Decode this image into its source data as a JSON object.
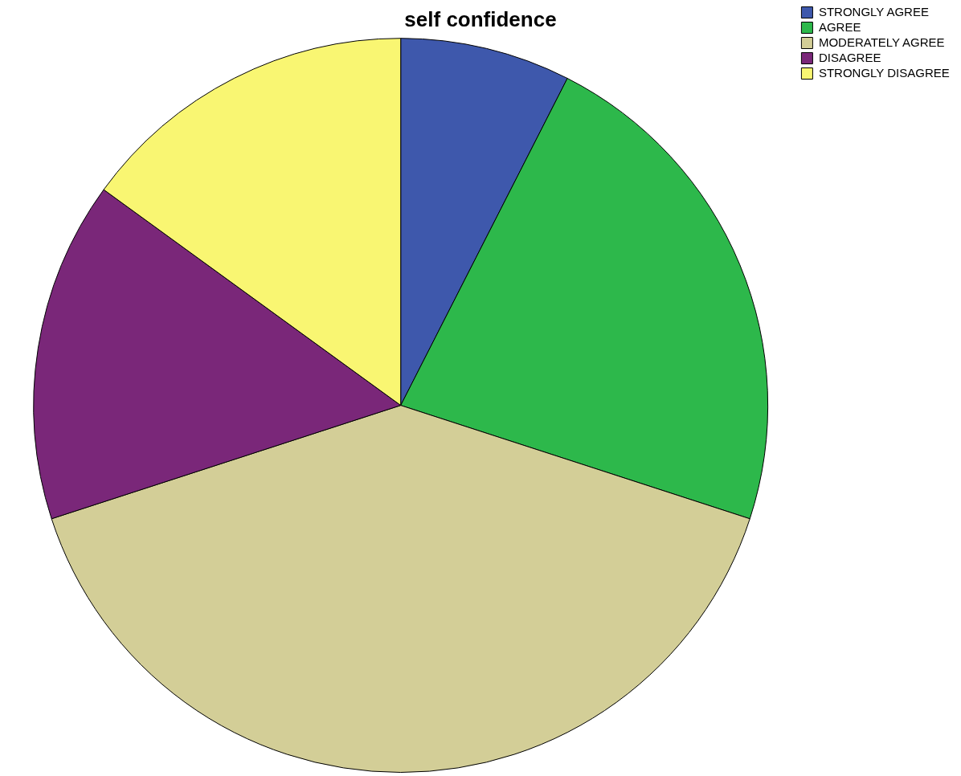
{
  "chart_data": {
    "type": "pie",
    "title": "self confidence",
    "categories": [
      "STRONGLY AGREE",
      "AGREE",
      "MODERATELY AGREE",
      "DISAGREE",
      "STRONGLY DISAGREE"
    ],
    "values": [
      7.5,
      22.5,
      40,
      15,
      15
    ],
    "colors": [
      "#3e58ac",
      "#2db84b",
      "#d3ce97",
      "#7a2779",
      "#f9f672"
    ],
    "legend": "top right"
  }
}
